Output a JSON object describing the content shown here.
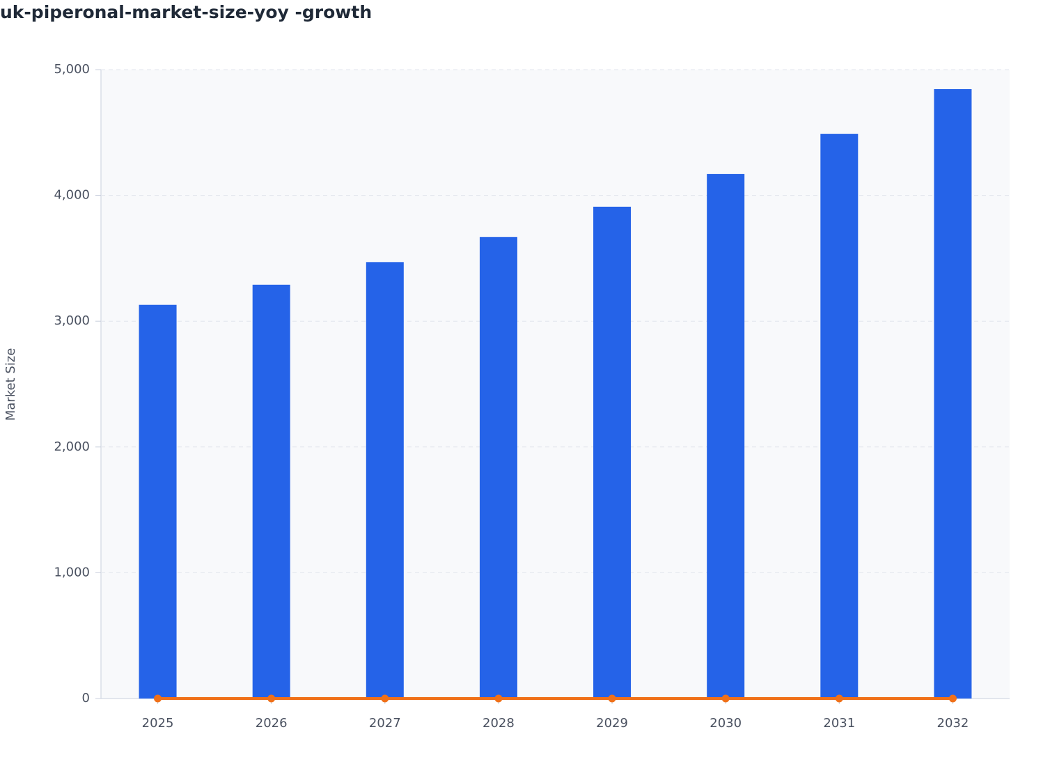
{
  "chart_data": {
    "type": "bar",
    "title": "uk-piperonal-market-size-yoy -growth",
    "y_label": "Market Size",
    "categories": [
      "2025",
      "2026",
      "2027",
      "2028",
      "2029",
      "2030",
      "2031",
      "2032"
    ],
    "series": [
      {
        "type": "bar",
        "color": "#2563e8",
        "values": [
          3130,
          3290,
          3470,
          3670,
          3910,
          4170,
          4490,
          4845
        ]
      },
      {
        "type": "line",
        "color": "#f07018",
        "values": [
          0,
          0,
          0,
          0,
          0,
          0,
          0,
          0
        ]
      }
    ],
    "ylim": [
      0,
      5000
    ],
    "yticks": [
      0,
      {
        "value": 1000,
        "label": "1,000"
      },
      {
        "value": 2000,
        "label": "2,000"
      },
      {
        "value": 3000,
        "label": "3,000"
      },
      {
        "value": 4000,
        "label": "4,000"
      },
      {
        "value": 5000,
        "label": "5,000"
      }
    ],
    "grid": true
  }
}
